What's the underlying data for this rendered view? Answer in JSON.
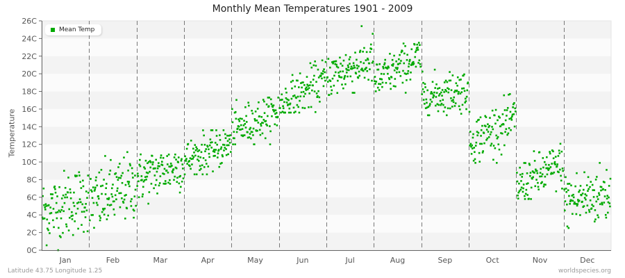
{
  "title": "Monthly Mean Temperatures 1901 - 2009",
  "footer": {
    "location": "Latitude 43.75 Longitude 1.25",
    "source": "worldspecies.org"
  },
  "legend": {
    "label": "Mean Temp",
    "color": "#00aa00"
  },
  "colors": {
    "point": "#00aa00",
    "band_dark": "#f3f3f3",
    "band_light": "#fbfbfb",
    "axis": "#666666",
    "separator": "#777777"
  },
  "chart_data": {
    "type": "scatter",
    "title": "Monthly Mean Temperatures 1901 - 2009",
    "xlabel": "",
    "ylabel": "Temperature",
    "ylim": [
      0,
      26
    ],
    "yticks": [
      "0C",
      "2C",
      "4C",
      "6C",
      "8C",
      "10C",
      "12C",
      "14C",
      "16C",
      "18C",
      "20C",
      "22C",
      "24C",
      "26C"
    ],
    "categories": [
      "Jan",
      "Feb",
      "Mar",
      "Apr",
      "May",
      "Jun",
      "Jul",
      "Aug",
      "Sep",
      "Oct",
      "Nov",
      "Dec"
    ],
    "legend": [
      "Mean Temp"
    ],
    "grid": "alternating horizontal bands every 2C, dashed vertical month separators",
    "years": [
      1901,
      2009
    ],
    "series": [
      {
        "name": "Mean Temp",
        "month": "Jan",
        "mean": 5.2,
        "min": 0.0,
        "max": 9.7
      },
      {
        "name": "Mean Temp",
        "month": "Feb",
        "mean": 6.3,
        "min": 2.3,
        "max": 11.2
      },
      {
        "name": "Mean Temp",
        "month": "Mar",
        "mean": 8.9,
        "min": 5.2,
        "max": 12.3
      },
      {
        "name": "Mean Temp",
        "month": "Apr",
        "mean": 11.1,
        "min": 8.6,
        "max": 13.6
      },
      {
        "name": "Mean Temp",
        "month": "May",
        "mean": 14.6,
        "min": 12.0,
        "max": 17.3
      },
      {
        "name": "Mean Temp",
        "month": "Jun",
        "mean": 17.9,
        "min": 15.6,
        "max": 22.2
      },
      {
        "name": "Mean Temp",
        "month": "Jul",
        "mean": 20.6,
        "min": 17.6,
        "max": 25.4
      },
      {
        "name": "Mean Temp",
        "month": "Aug",
        "mean": 20.5,
        "min": 17.8,
        "max": 24.1
      },
      {
        "name": "Mean Temp",
        "month": "Sep",
        "mean": 17.8,
        "min": 15.3,
        "max": 21.0
      },
      {
        "name": "Mean Temp",
        "month": "Oct",
        "mean": 13.6,
        "min": 9.9,
        "max": 17.7
      },
      {
        "name": "Mean Temp",
        "month": "Nov",
        "mean": 8.5,
        "min": 5.8,
        "max": 12.2
      },
      {
        "name": "Mean Temp",
        "month": "Dec",
        "mean": 6.0,
        "min": 1.9,
        "max": 10.0
      }
    ],
    "trend_within_month": [
      1.8,
      2.2,
      1.6,
      2.0,
      2.2,
      3.0,
      2.0,
      3.0,
      1.0,
      2.5,
      2.5,
      1.0
    ],
    "spread_sd": [
      1.9,
      1.9,
      1.4,
      1.2,
      1.2,
      1.2,
      1.4,
      1.2,
      1.2,
      1.4,
      1.3,
      1.7
    ]
  }
}
